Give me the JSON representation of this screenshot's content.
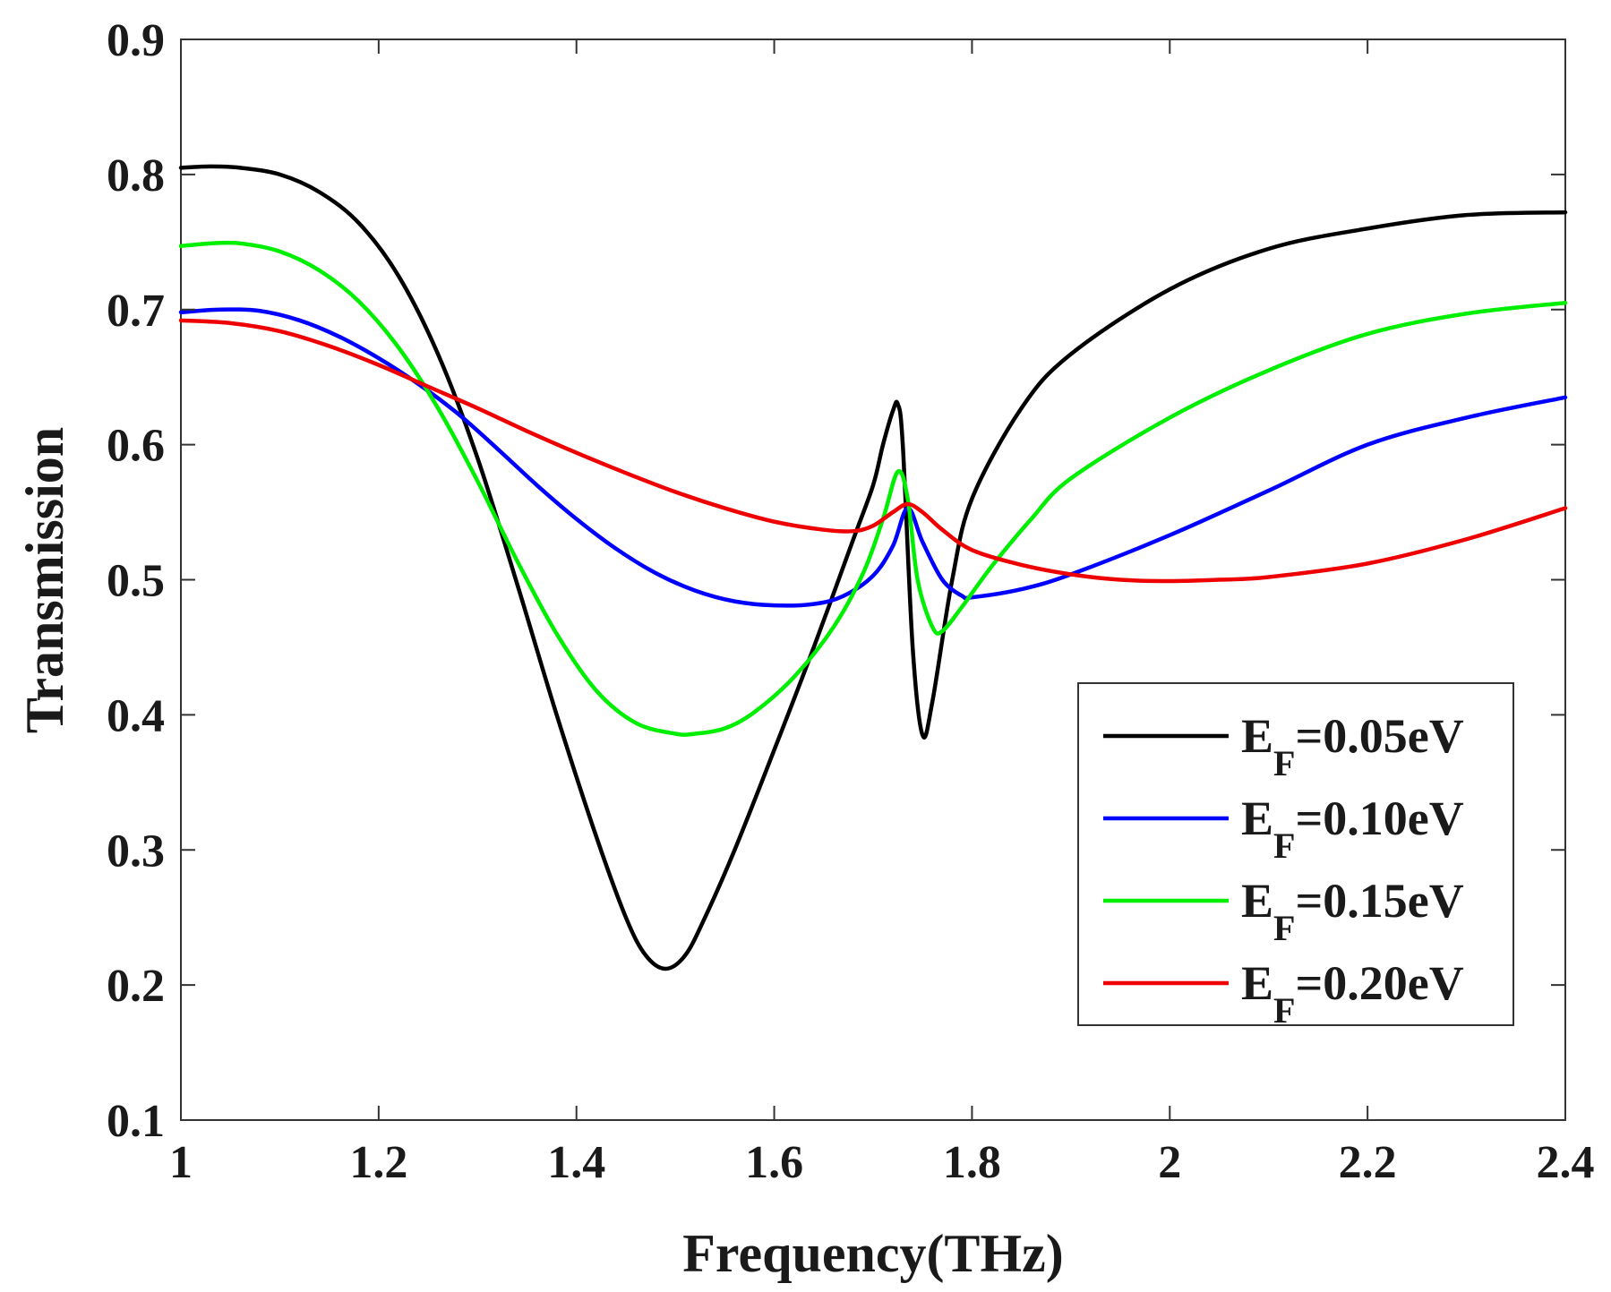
{
  "chart_data": {
    "type": "line",
    "title": "",
    "xlabel": "Frequency(THz)",
    "ylabel": "Transmission",
    "xlim": [
      1,
      2.4
    ],
    "ylim": [
      0.1,
      0.9
    ],
    "xticks": [
      1,
      1.2,
      1.4,
      1.6,
      1.8,
      2,
      2.2,
      2.4
    ],
    "xtick_labels": [
      "1",
      "1.2",
      "1.4",
      "1.6",
      "1.8",
      "2",
      "2.2",
      "2.4"
    ],
    "yticks": [
      0.1,
      0.2,
      0.3,
      0.4,
      0.5,
      0.6,
      0.7,
      0.8,
      0.9
    ],
    "ytick_labels": [
      "0.1",
      "0.2",
      "0.3",
      "0.4",
      "0.5",
      "0.6",
      "0.7",
      "0.8",
      "0.9"
    ],
    "grid": false,
    "legend_position": "lower-right",
    "series": [
      {
        "name": "EF=0.05eV",
        "label_main": "E",
        "label_sub": "F",
        "label_tail": "=0.05eV",
        "color": "#000000",
        "x": [
          1.0,
          1.03,
          1.06,
          1.1,
          1.14,
          1.18,
          1.22,
          1.26,
          1.3,
          1.34,
          1.38,
          1.42,
          1.45,
          1.47,
          1.49,
          1.51,
          1.53,
          1.56,
          1.6,
          1.64,
          1.68,
          1.7,
          1.71,
          1.72,
          1.725,
          1.73,
          1.74,
          1.75,
          1.76,
          1.78,
          1.8,
          1.85,
          1.9,
          2.0,
          2.1,
          2.2,
          2.3,
          2.4
        ],
        "y": [
          0.805,
          0.806,
          0.805,
          0.8,
          0.787,
          0.764,
          0.725,
          0.667,
          0.59,
          0.497,
          0.4,
          0.31,
          0.25,
          0.222,
          0.212,
          0.222,
          0.25,
          0.3,
          0.374,
          0.45,
          0.53,
          0.57,
          0.6,
          0.625,
          0.63,
          0.6,
          0.45,
          0.385,
          0.41,
          0.5,
          0.56,
          0.627,
          0.667,
          0.715,
          0.745,
          0.76,
          0.77,
          0.772
        ]
      },
      {
        "name": "EF=0.10eV",
        "label_main": "E",
        "label_sub": "F",
        "label_tail": "=0.10eV",
        "color": "#0000ff",
        "x": [
          1.0,
          1.04,
          1.08,
          1.12,
          1.16,
          1.2,
          1.24,
          1.28,
          1.32,
          1.36,
          1.4,
          1.44,
          1.48,
          1.52,
          1.56,
          1.6,
          1.64,
          1.67,
          1.7,
          1.72,
          1.735,
          1.75,
          1.77,
          1.79,
          1.8,
          1.85,
          1.9,
          2.0,
          2.1,
          2.2,
          2.3,
          2.4
        ],
        "y": [
          0.698,
          0.7,
          0.699,
          0.692,
          0.68,
          0.664,
          0.645,
          0.623,
          0.597,
          0.57,
          0.545,
          0.523,
          0.505,
          0.492,
          0.484,
          0.481,
          0.482,
          0.488,
          0.503,
          0.525,
          0.553,
          0.528,
          0.5,
          0.488,
          0.487,
          0.493,
          0.504,
          0.533,
          0.566,
          0.6,
          0.62,
          0.635
        ]
      },
      {
        "name": "EF=0.15eV",
        "label_main": "E",
        "label_sub": "F",
        "label_tail": "=0.15eV",
        "color": "#00ee00",
        "x": [
          1.0,
          1.03,
          1.06,
          1.1,
          1.14,
          1.18,
          1.22,
          1.26,
          1.3,
          1.34,
          1.38,
          1.42,
          1.46,
          1.5,
          1.52,
          1.55,
          1.58,
          1.62,
          1.66,
          1.69,
          1.71,
          1.725,
          1.735,
          1.745,
          1.76,
          1.77,
          1.79,
          1.82,
          1.86,
          1.9,
          2.0,
          2.1,
          2.2,
          2.3,
          2.4
        ],
        "y": [
          0.747,
          0.749,
          0.749,
          0.743,
          0.729,
          0.706,
          0.672,
          0.627,
          0.573,
          0.514,
          0.46,
          0.418,
          0.394,
          0.386,
          0.386,
          0.39,
          0.402,
          0.428,
          0.465,
          0.505,
          0.545,
          0.58,
          0.56,
          0.5,
          0.465,
          0.462,
          0.48,
          0.51,
          0.545,
          0.575,
          0.62,
          0.655,
          0.682,
          0.697,
          0.705
        ]
      },
      {
        "name": "EF=0.20eV",
        "label_main": "E",
        "label_sub": "F",
        "label_tail": "=0.20eV",
        "color": "#ee0000",
        "x": [
          1.0,
          1.05,
          1.1,
          1.15,
          1.2,
          1.25,
          1.3,
          1.35,
          1.4,
          1.45,
          1.5,
          1.55,
          1.6,
          1.65,
          1.68,
          1.7,
          1.72,
          1.735,
          1.75,
          1.77,
          1.8,
          1.85,
          1.9,
          1.95,
          2.0,
          2.05,
          2.1,
          2.2,
          2.3,
          2.4
        ],
        "y": [
          0.692,
          0.69,
          0.684,
          0.673,
          0.659,
          0.643,
          0.627,
          0.61,
          0.594,
          0.579,
          0.565,
          0.553,
          0.543,
          0.537,
          0.536,
          0.54,
          0.55,
          0.556,
          0.55,
          0.537,
          0.522,
          0.511,
          0.504,
          0.5,
          0.499,
          0.5,
          0.502,
          0.512,
          0.53,
          0.553
        ]
      }
    ]
  }
}
